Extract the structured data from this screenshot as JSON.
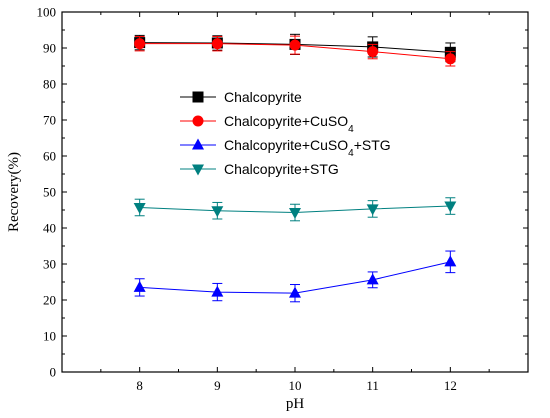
{
  "chart_data": {
    "type": "line",
    "xlabel": "pH",
    "ylabel": "Recovery(%)",
    "x": [
      8,
      9,
      10,
      11,
      12
    ],
    "xlim": [
      7,
      13
    ],
    "ylim": [
      0,
      100
    ],
    "xticks": [
      8,
      9,
      10,
      11,
      12
    ],
    "yticks": [
      0,
      10,
      20,
      30,
      40,
      50,
      60,
      70,
      80,
      90,
      100
    ],
    "legend_position": "center-left",
    "grid": false,
    "series": [
      {
        "name": "Chalcopyrite",
        "name_html": "Chalcopyrite",
        "color": "#000000",
        "marker": "square",
        "values": [
          91.5,
          91.4,
          91.0,
          90.3,
          88.8
        ],
        "errors": [
          2.0,
          2.0,
          2.8,
          2.8,
          2.6
        ]
      },
      {
        "name": "Chalcopyrite+CuSO4",
        "name_html": "Chalcopyrite+CuSO<tspan baseline-shift='sub' font-size='10'>4</tspan>",
        "color": "#ff0000",
        "marker": "circle",
        "values": [
          91.2,
          91.2,
          90.8,
          89.0,
          87.0
        ],
        "errors": [
          2.0,
          2.0,
          2.5,
          2.0,
          2.0
        ]
      },
      {
        "name": "Chalcopyrite+CuSO4+STG",
        "name_html": "Chalcopyrite+CuSO<tspan baseline-shift='sub' font-size='10'>4</tspan>+STG",
        "color": "#0000ff",
        "marker": "triangle-up",
        "values": [
          23.5,
          22.2,
          21.9,
          25.6,
          30.6
        ],
        "errors": [
          2.4,
          2.4,
          2.4,
          2.2,
          3.0
        ]
      },
      {
        "name": "Chalcopyrite+STG",
        "name_html": "Chalcopyrite+STG",
        "color": "#008080",
        "marker": "triangle-down",
        "values": [
          45.7,
          44.8,
          44.3,
          45.3,
          46.1
        ],
        "errors": [
          2.3,
          2.3,
          2.3,
          2.3,
          2.3
        ]
      }
    ]
  }
}
